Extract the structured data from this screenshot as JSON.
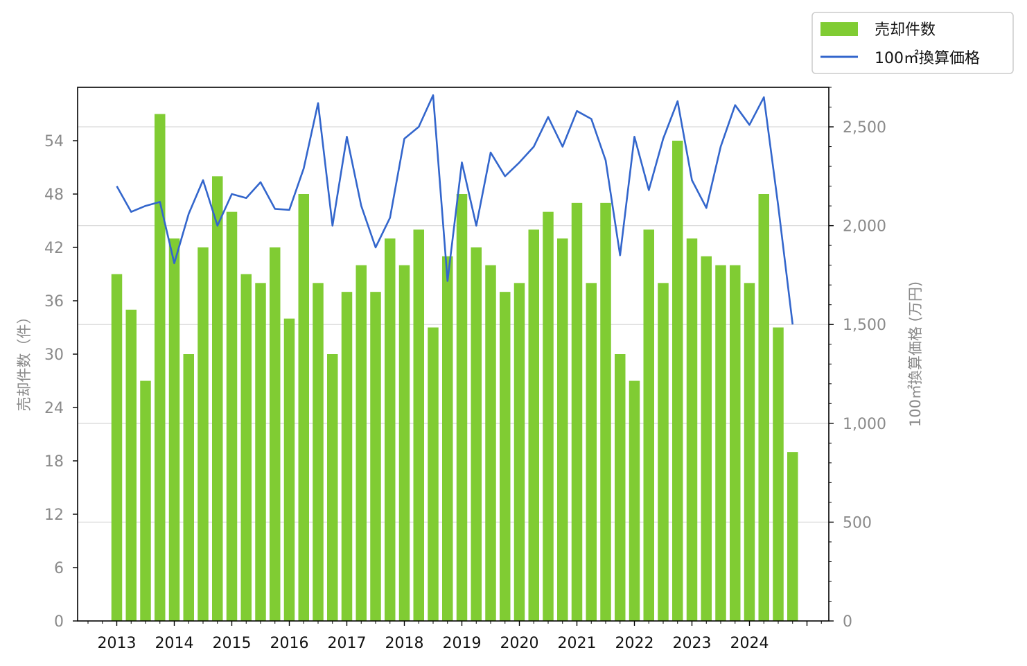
{
  "chart_data": {
    "type": "bar",
    "x": [
      "2013Q1",
      "2013Q2",
      "2013Q3",
      "2013Q4",
      "2014Q1",
      "2014Q2",
      "2014Q3",
      "2014Q4",
      "2015Q1",
      "2015Q2",
      "2015Q3",
      "2015Q4",
      "2016Q1",
      "2016Q2",
      "2016Q3",
      "2016Q4",
      "2017Q1",
      "2017Q2",
      "2017Q3",
      "2017Q4",
      "2018Q1",
      "2018Q2",
      "2018Q3",
      "2018Q4",
      "2019Q1",
      "2019Q2",
      "2019Q3",
      "2019Q4",
      "2020Q1",
      "2020Q2",
      "2020Q3",
      "2020Q4",
      "2021Q1",
      "2021Q2",
      "2021Q3",
      "2021Q4",
      "2022Q1",
      "2022Q2",
      "2022Q3",
      "2022Q4",
      "2023Q1",
      "2023Q2",
      "2023Q3",
      "2023Q4",
      "2024Q1",
      "2024Q2",
      "2024Q3",
      "2024Q4"
    ],
    "year_labels": [
      "2013",
      "2014",
      "2015",
      "2016",
      "2017",
      "2018",
      "2019",
      "2020",
      "2021",
      "2022",
      "2023",
      "2024"
    ],
    "series": [
      {
        "name": "売却件数",
        "type": "bar",
        "axis": "left",
        "color": "#80cc33",
        "values": [
          39,
          35,
          27,
          57,
          43,
          30,
          42,
          50,
          46,
          39,
          38,
          42,
          34,
          48,
          38,
          30,
          37,
          40,
          37,
          43,
          40,
          44,
          33,
          41,
          48,
          42,
          40,
          37,
          38,
          44,
          46,
          43,
          47,
          38,
          47,
          30,
          27,
          44,
          38,
          54,
          43,
          41,
          40,
          40,
          38,
          48,
          33,
          19
        ]
      },
      {
        "name": "100㎡換算価格",
        "type": "line",
        "axis": "right",
        "color": "#3366cc",
        "values": [
          2200,
          2070,
          2100,
          2120,
          1810,
          2060,
          2230,
          2000,
          2160,
          2140,
          2220,
          2085,
          2080,
          2290,
          2620,
          2000,
          2450,
          2100,
          1890,
          2040,
          2440,
          2500,
          2660,
          1720,
          2320,
          2000,
          2370,
          2250,
          2320,
          2400,
          2550,
          2400,
          2580,
          2540,
          2330,
          1850,
          2450,
          2180,
          2440,
          2630,
          2230,
          2090,
          2400,
          2610,
          2510,
          2650,
          2100,
          1500
        ]
      }
    ],
    "ylabel_left": "売却件数（件）",
    "ylabel_right": "100㎡換算価格 (万円)",
    "ylim_left": [
      0,
      60
    ],
    "ylim_right": [
      0,
      2700
    ],
    "yticks_left": [
      "0",
      "6",
      "12",
      "18",
      "24",
      "30",
      "36",
      "42",
      "48",
      "54"
    ],
    "yticks_right": [
      "0",
      "500",
      "1,000",
      "1,500",
      "2,000",
      "2,500"
    ],
    "grid": "horizontal, right axis",
    "legend_position": "top-right, above plot"
  }
}
